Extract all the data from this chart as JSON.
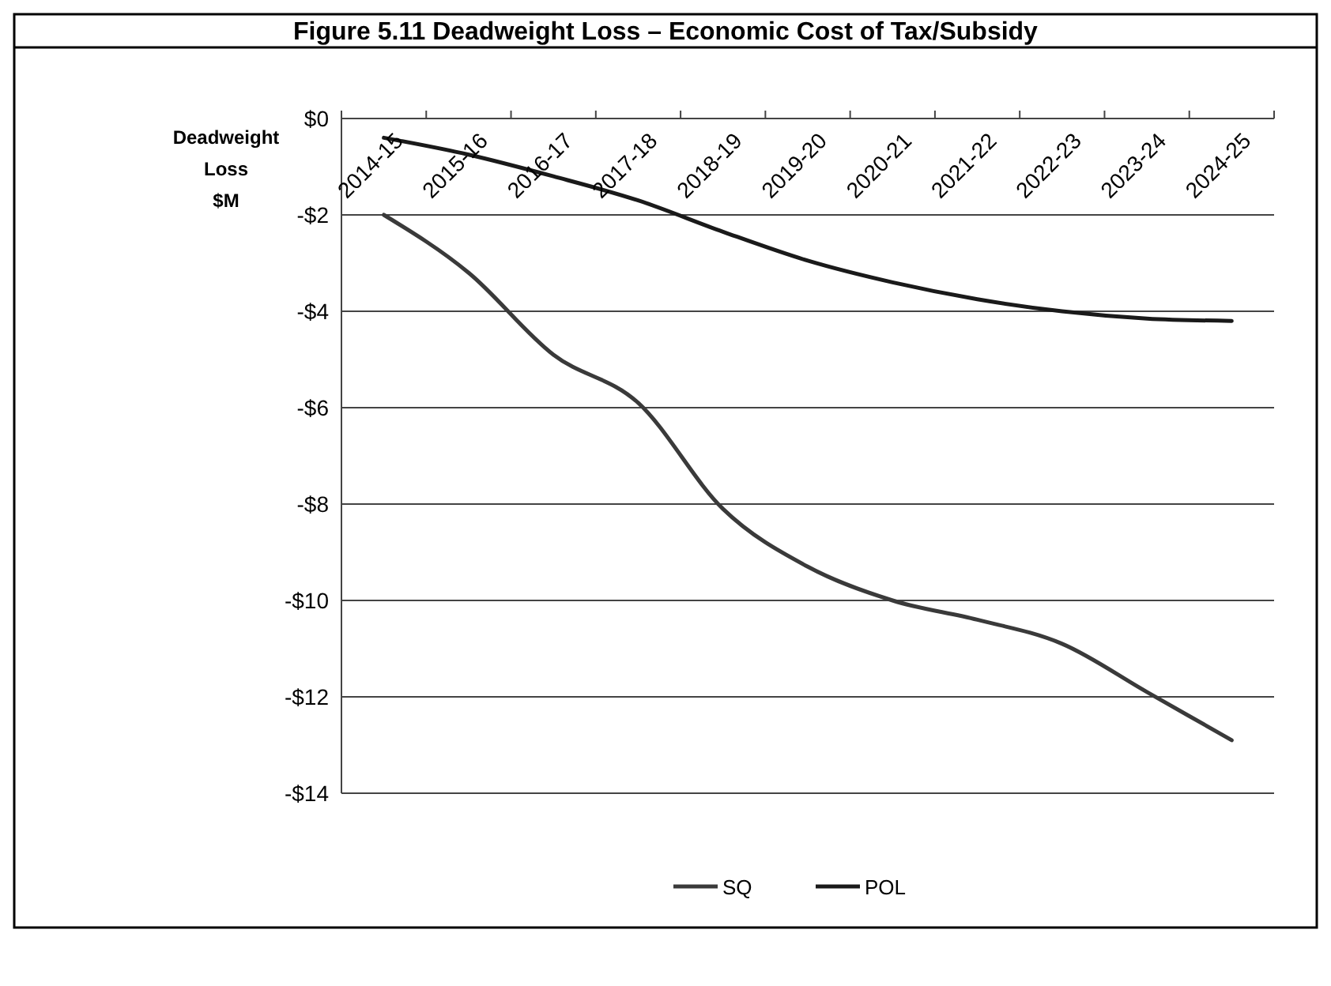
{
  "chart_data": {
    "type": "line",
    "title": "Figure 5.11 Deadweight Loss – Economic Cost of Tax/Subsidy",
    "ylabel": "Deadweight Loss $M",
    "categories": [
      "2014-15",
      "2015-16",
      "2016-17",
      "2017-18",
      "2018-19",
      "2019-20",
      "2020-21",
      "2021-22",
      "2022-23",
      "2023-24",
      "2024-25"
    ],
    "series": [
      {
        "name": "SQ",
        "color": "#3a3a3a",
        "values": [
          -2.0,
          -3.2,
          -4.9,
          -5.9,
          -8.1,
          -9.3,
          -10.0,
          -10.4,
          -10.9,
          -11.9,
          -12.9
        ]
      },
      {
        "name": "POL",
        "color": "#1a1a1a",
        "values": [
          -0.4,
          -0.75,
          -1.2,
          -1.7,
          -2.35,
          -2.95,
          -3.4,
          -3.75,
          -4.0,
          -4.15,
          -4.2
        ]
      }
    ],
    "ylim": [
      -14,
      0
    ],
    "yticks": [
      {
        "value": 0,
        "label": "$0"
      },
      {
        "value": -2,
        "label": "-$2"
      },
      {
        "value": -4,
        "label": "-$4"
      },
      {
        "value": -6,
        "label": "-$6"
      },
      {
        "value": -8,
        "label": "-$8"
      },
      {
        "value": -10,
        "label": "-$10"
      },
      {
        "value": -12,
        "label": "-$12"
      },
      {
        "value": -14,
        "label": "-$14"
      }
    ],
    "grid": "y",
    "legend": "bottom",
    "marker": "none",
    "line_style": "solid"
  }
}
